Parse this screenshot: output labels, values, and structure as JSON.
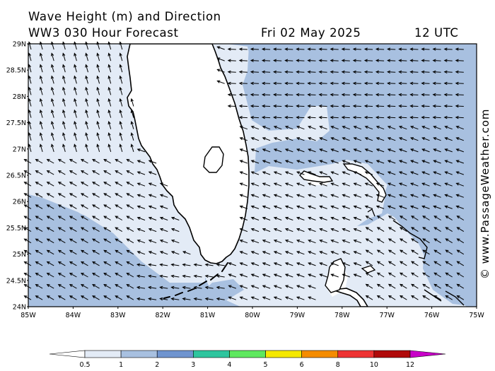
{
  "header": {
    "title_line1": "Wave Height (m) and Direction",
    "title_line2": "WW3 030 Hour Forecast",
    "date": "Fri 02 May 2025",
    "time": "12 UTC"
  },
  "credit": "© www.PassageWeather.com",
  "map": {
    "region": "Florida / Bahamas",
    "lat_labels": [
      "29N",
      "28.5N",
      "28N",
      "27.5N",
      "27N",
      "26.5N",
      "26N",
      "25.5N",
      "25N",
      "24.5N",
      "24N"
    ],
    "lon_labels": [
      "85W",
      "84W",
      "83W",
      "82W",
      "81W",
      "80W",
      "79W",
      "78W",
      "77W",
      "76W",
      "75W"
    ],
    "lat_range": [
      24,
      29
    ],
    "lon_range": [
      -85,
      -75
    ],
    "land_color": "#ffffff",
    "coast_color": "#000000"
  },
  "legend": {
    "ticks": [
      "0.5",
      "1",
      "2",
      "3",
      "4",
      "5",
      "6",
      "8",
      "10",
      "12"
    ],
    "colors": [
      "#e3ebf6",
      "#a8c0e0",
      "#6f94cf",
      "#2ec59e",
      "#5ee85e",
      "#f5e800",
      "#f58c00",
      "#ee3333",
      "#b00a0a",
      "#c800c8"
    ],
    "scale_name": "wave height (m)"
  },
  "colors": {
    "band_lt05": "#ffffff",
    "band_05_1": "#e3ebf6",
    "band_1_2": "#a8c0e0",
    "arrows": "#000000"
  }
}
